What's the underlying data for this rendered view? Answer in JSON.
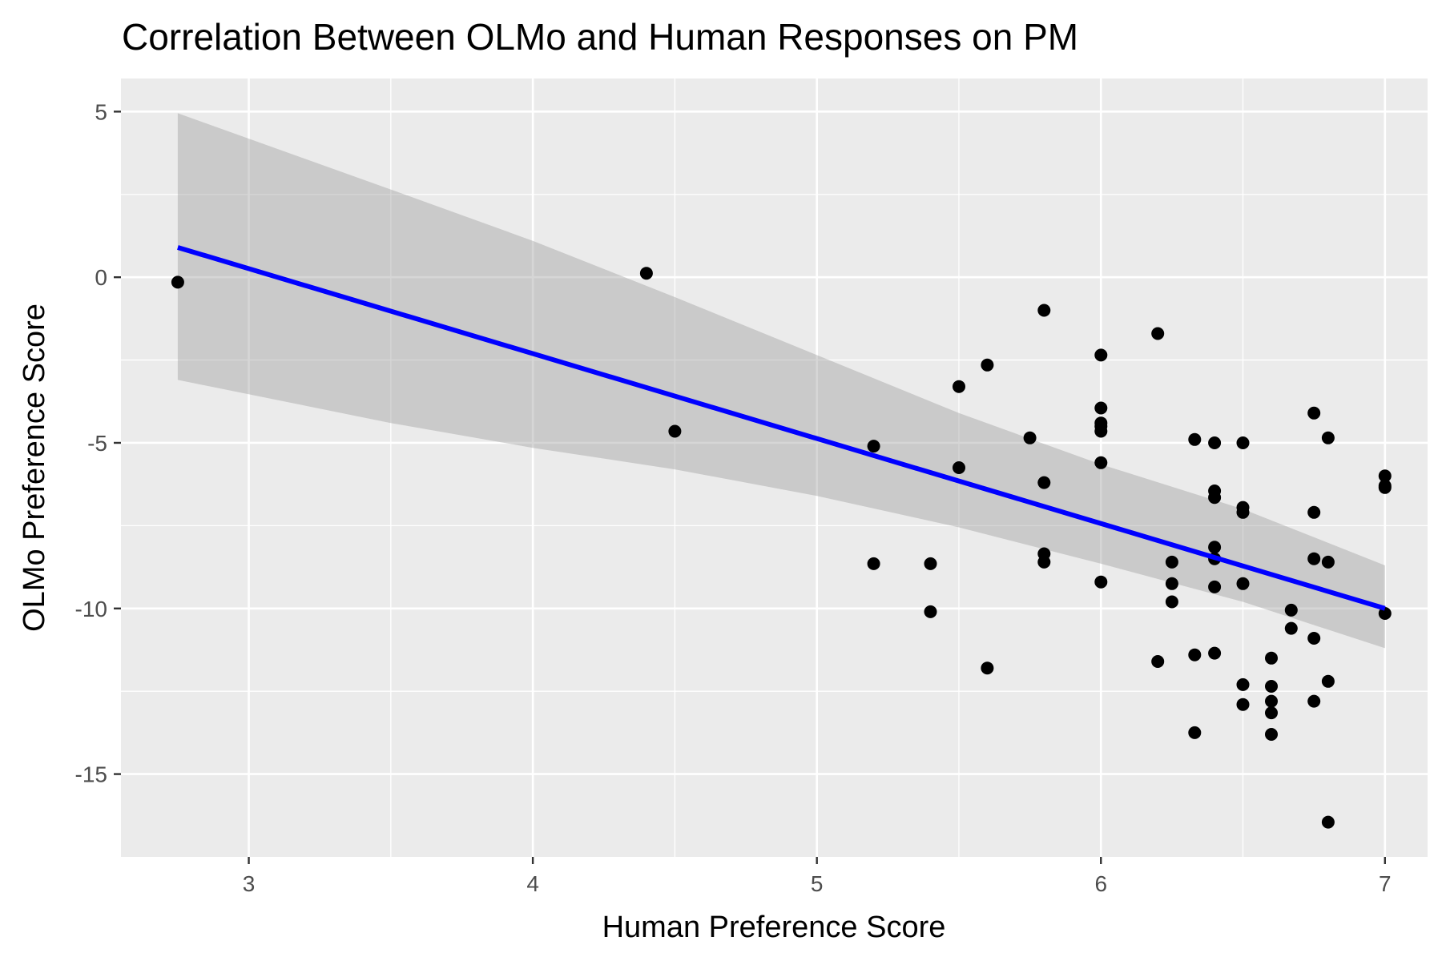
{
  "chart_data": {
    "type": "scatter",
    "title": "Correlation Between OLMo and Human Responses on PM",
    "xlabel": "Human Preference Score",
    "ylabel": "OLMo Preference Score",
    "xlim": [
      2.55,
      7.15
    ],
    "ylim": [
      -17.5,
      6.0
    ],
    "x_ticks": [
      3,
      4,
      5,
      6,
      7
    ],
    "x_tick_labels": [
      "3",
      "4",
      "5",
      "6",
      "7"
    ],
    "y_ticks": [
      5,
      0,
      -5,
      -10,
      -15
    ],
    "y_tick_labels": [
      "5",
      "0",
      "-5",
      "-10",
      "-15"
    ],
    "grid": true,
    "legend": "none",
    "colors": {
      "panel_background": "#ebebeb",
      "grid": "#ffffff",
      "points": "#000000",
      "fit_line": "#0000ff",
      "confidence_band": "#c8c8c8",
      "tick_label": "#4d4d4d"
    },
    "series": [
      {
        "name": "responses",
        "points": [
          [
            2.75,
            -0.15
          ],
          [
            4.4,
            0.12
          ],
          [
            4.5,
            -4.65
          ],
          [
            5.2,
            -5.1
          ],
          [
            5.2,
            -8.65
          ],
          [
            5.4,
            -8.65
          ],
          [
            5.4,
            -10.1
          ],
          [
            5.5,
            -3.3
          ],
          [
            5.5,
            -5.75
          ],
          [
            5.6,
            -2.65
          ],
          [
            5.6,
            -11.8
          ],
          [
            5.75,
            -4.85
          ],
          [
            5.8,
            -1.0
          ],
          [
            5.8,
            -6.2
          ],
          [
            5.8,
            -8.35
          ],
          [
            5.8,
            -8.6
          ],
          [
            6.0,
            -2.35
          ],
          [
            6.0,
            -3.95
          ],
          [
            6.0,
            -4.4
          ],
          [
            6.0,
            -4.5
          ],
          [
            6.0,
            -4.65
          ],
          [
            6.0,
            -5.6
          ],
          [
            6.0,
            -9.2
          ],
          [
            6.2,
            -1.7
          ],
          [
            6.2,
            -11.6
          ],
          [
            6.25,
            -8.6
          ],
          [
            6.25,
            -9.25
          ],
          [
            6.25,
            -9.8
          ],
          [
            6.33,
            -4.9
          ],
          [
            6.33,
            -11.4
          ],
          [
            6.33,
            -13.75
          ],
          [
            6.4,
            -5.0
          ],
          [
            6.4,
            -6.45
          ],
          [
            6.4,
            -6.65
          ],
          [
            6.4,
            -8.15
          ],
          [
            6.4,
            -8.5
          ],
          [
            6.4,
            -9.35
          ],
          [
            6.4,
            -11.35
          ],
          [
            6.5,
            -5.0
          ],
          [
            6.5,
            -6.95
          ],
          [
            6.5,
            -7.1
          ],
          [
            6.5,
            -9.25
          ],
          [
            6.5,
            -12.3
          ],
          [
            6.5,
            -12.9
          ],
          [
            6.6,
            -11.5
          ],
          [
            6.6,
            -12.35
          ],
          [
            6.6,
            -12.8
          ],
          [
            6.6,
            -13.15
          ],
          [
            6.6,
            -13.8
          ],
          [
            6.67,
            -10.05
          ],
          [
            6.67,
            -10.6
          ],
          [
            6.75,
            -4.1
          ],
          [
            6.75,
            -7.1
          ],
          [
            6.75,
            -8.5
          ],
          [
            6.75,
            -10.9
          ],
          [
            6.75,
            -12.8
          ],
          [
            6.8,
            -4.85
          ],
          [
            6.8,
            -8.6
          ],
          [
            6.8,
            -12.2
          ],
          [
            6.8,
            -16.45
          ],
          [
            7.0,
            -6.0
          ],
          [
            7.0,
            -6.3
          ],
          [
            7.0,
            -6.35
          ],
          [
            7.0,
            -10.15
          ]
        ]
      }
    ],
    "fit_line": {
      "method": "lm",
      "x": [
        2.75,
        7.0
      ],
      "y": [
        0.9,
        -10.0
      ]
    },
    "confidence_band": {
      "x": [
        2.75,
        3.5,
        4.0,
        4.5,
        5.0,
        5.5,
        6.0,
        6.5,
        7.0
      ],
      "upper": [
        4.95,
        2.65,
        1.1,
        -0.6,
        -2.35,
        -4.1,
        -5.65,
        -7.0,
        -8.7
      ],
      "lower": [
        -3.1,
        -4.4,
        -5.15,
        -5.8,
        -6.6,
        -7.55,
        -8.65,
        -9.8,
        -11.2
      ]
    }
  }
}
